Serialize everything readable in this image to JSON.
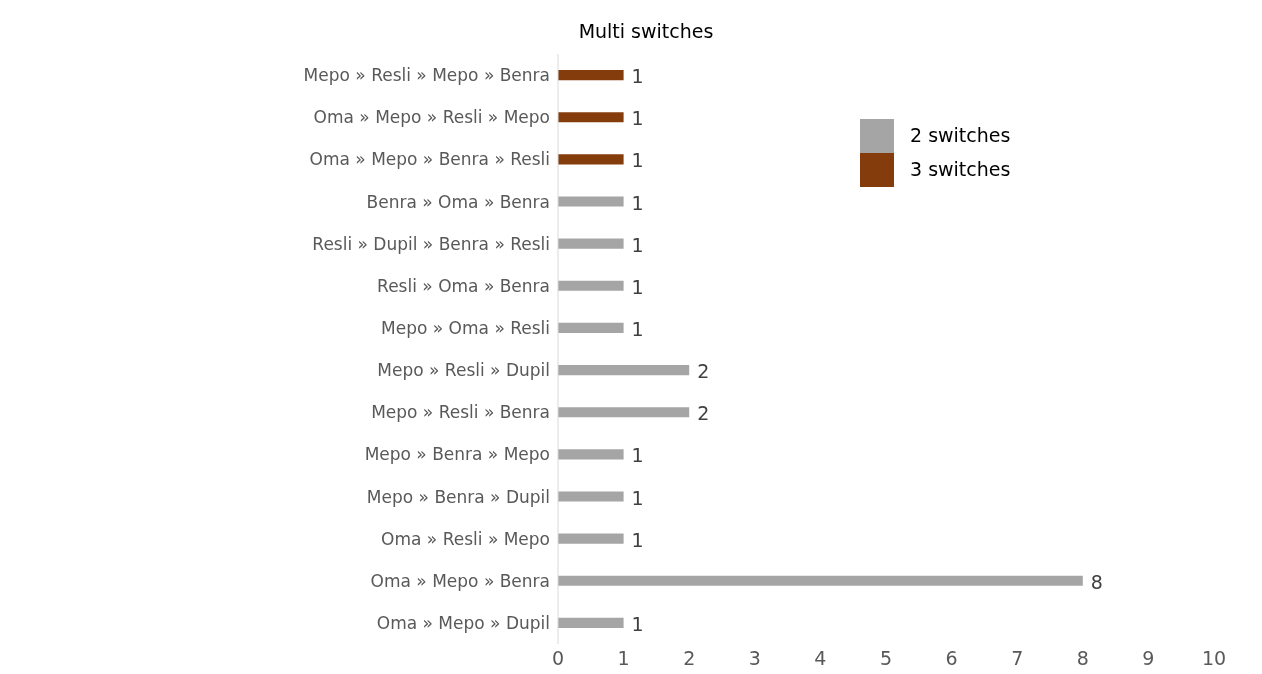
{
  "chart_data": {
    "type": "bar",
    "orientation": "horizontal",
    "stacked": true,
    "title": "Multi switches",
    "categories": [
      "Mepo » Resli » Mepo » Benra",
      "Oma » Mepo » Resli » Mepo",
      "Oma » Mepo » Benra » Resli",
      "Benra » Oma » Benra",
      "Resli » Dupil » Benra » Resli",
      "Resli » Oma » Benra",
      "Mepo » Oma » Resli",
      "Mepo » Resli » Dupil",
      "Mepo » Resli » Benra",
      "Mepo » Benra » Mepo",
      "Mepo » Benra » Dupil",
      "Oma » Resli » Mepo",
      "Oma » Mepo » Benra",
      "Oma » Mepo » Dupil"
    ],
    "series": [
      {
        "name": "2 switches",
        "color": "#a5a5a5",
        "values": [
          null,
          null,
          null,
          1,
          1,
          1,
          1,
          2,
          2,
          1,
          1,
          1,
          8,
          1
        ]
      },
      {
        "name": "3 switches",
        "color": "#843c0c",
        "values": [
          1,
          1,
          1,
          null,
          null,
          null,
          null,
          null,
          null,
          null,
          null,
          null,
          null,
          null
        ]
      }
    ],
    "xlim": [
      0,
      10
    ],
    "xticks": [
      0,
      1,
      2,
      3,
      4,
      5,
      6,
      7,
      8,
      9,
      10
    ],
    "data_labels": true,
    "grid": false,
    "legend": "top right"
  }
}
